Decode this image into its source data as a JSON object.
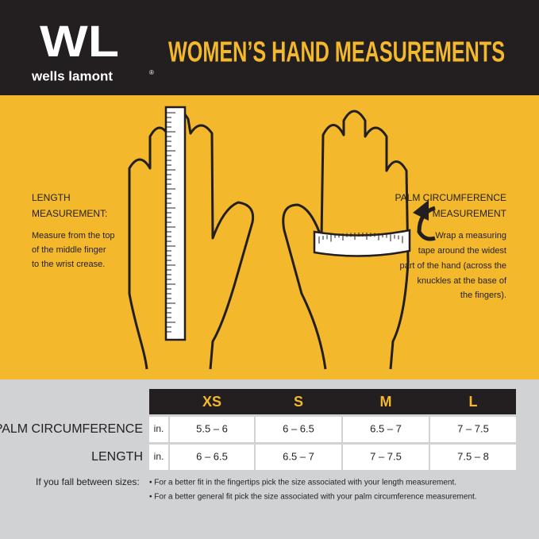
{
  "header": {
    "logo_letters": "WL",
    "brand": "wells lamont",
    "brand_mark": "®",
    "title": "WOMEN’S HAND MEASUREMENTS"
  },
  "left_panel": {
    "heading_lines": [
      "LENGTH",
      "MEASUREMENT:"
    ],
    "text_lines": [
      "Measure from the top",
      "of the middle finger",
      "to the wrist crease."
    ]
  },
  "right_panel": {
    "heading_lines": [
      "PALM CIRCUMFERENCE",
      "MEASUREMENT"
    ],
    "text_lines": [
      "Wrap a measuring",
      "tape around the widest",
      "part of the hand (across the",
      "knuckles at the base of",
      "the fingers)."
    ]
  },
  "table": {
    "columns": [
      "XS",
      "S",
      "M",
      "L"
    ],
    "rows": [
      {
        "label": "PALM CIRCUMFERENCE",
        "unit": "in.",
        "cells": [
          "5.5 – 6",
          "6 – 6.5",
          "6.5 – 7",
          "7 – 7.5"
        ]
      },
      {
        "label": "LENGTH",
        "unit": "in.",
        "cells": [
          "6 – 6.5",
          "6.5 – 7",
          "7 – 7.5",
          "7.5 – 8"
        ]
      }
    ]
  },
  "note": {
    "label": "If you fall between sizes:",
    "bullets": [
      "• For a better fit in the fingertips pick the size associated with your length measurement.",
      "• For a better general fit pick the size associated with your palm circumference measurement."
    ]
  }
}
